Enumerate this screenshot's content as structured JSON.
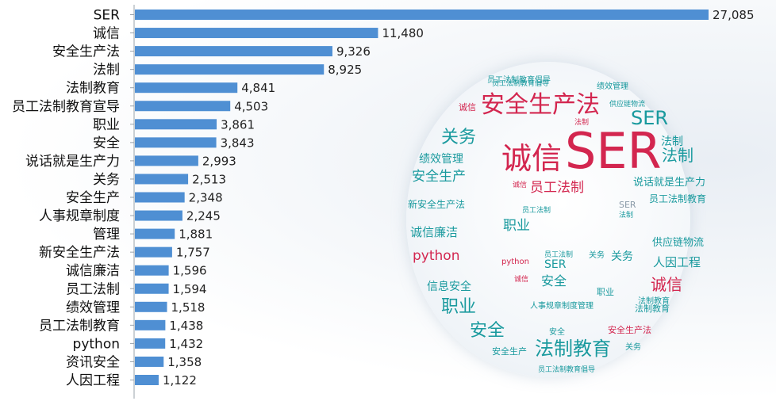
{
  "chart_data": {
    "type": "bar",
    "orientation": "horizontal",
    "categories": [
      "SER",
      "诚信",
      "安全生产法",
      "法制",
      "法制教育",
      "员工法制教育宣导",
      "职业",
      "安全",
      "说话就是生产力",
      "关务",
      "安全生产",
      "人事规章制度",
      "管理",
      "新安全生产法",
      "诚信廉洁",
      "员工法制",
      "绩效管理",
      "员工法制教育",
      "python",
      "资讯安全",
      "人因工程"
    ],
    "values": [
      27085,
      11480,
      9326,
      8925,
      4841,
      4503,
      3861,
      3843,
      2993,
      2513,
      2348,
      2245,
      1881,
      1757,
      1596,
      1594,
      1518,
      1438,
      1432,
      1358,
      1122
    ],
    "value_labels": [
      "27,085",
      "11,480",
      "9,326",
      "8,925",
      "4,841",
      "4,503",
      "3,861",
      "3,843",
      "2,993",
      "2,513",
      "2,348",
      "2,245",
      "1,881",
      "1,757",
      "1,596",
      "1,594",
      "1,518",
      "1,438",
      "1,432",
      "1,358",
      "1,122"
    ],
    "xlim": [
      0,
      27085
    ],
    "grid": false,
    "bar_color": "#4f8fd3"
  },
  "word_cloud": {
    "colors": {
      "red": "#d3264f",
      "teal": "#1a9a9e",
      "dark": "#1f5f7a",
      "gray": "#8a9aa8"
    },
    "words": [
      {
        "text": "SER",
        "color": "red"
      },
      {
        "text": "安全生产法",
        "color": "red"
      },
      {
        "text": "诚信",
        "color": "red"
      },
      {
        "text": "SER",
        "color": "teal"
      },
      {
        "text": "关务",
        "color": "teal"
      },
      {
        "text": "法制",
        "color": "teal"
      },
      {
        "text": "员工法制",
        "color": "red"
      },
      {
        "text": "绩效管理",
        "color": "teal"
      },
      {
        "text": "安全生产",
        "color": "teal"
      },
      {
        "text": "法制",
        "color": "teal"
      },
      {
        "text": "说话就是生产力",
        "color": "teal"
      },
      {
        "text": "员工法制教育",
        "color": "teal"
      },
      {
        "text": "新安全生产法",
        "color": "teal"
      },
      {
        "text": "职业",
        "color": "teal"
      },
      {
        "text": "诚信廉洁",
        "color": "teal"
      },
      {
        "text": "python",
        "color": "red"
      },
      {
        "text": "信息安全",
        "color": "teal"
      },
      {
        "text": "职业",
        "color": "teal"
      },
      {
        "text": "安全",
        "color": "teal"
      },
      {
        "text": "法制教育",
        "color": "teal"
      },
      {
        "text": "诚信",
        "color": "red"
      },
      {
        "text": "人因工程",
        "color": "teal"
      },
      {
        "text": "供应链物流",
        "color": "teal"
      },
      {
        "text": "关务",
        "color": "teal"
      },
      {
        "text": "安全",
        "color": "teal"
      },
      {
        "text": "SER",
        "color": "teal"
      },
      {
        "text": "员工法制教育倡导",
        "color": "teal"
      },
      {
        "text": "绩效管理",
        "color": "teal"
      },
      {
        "text": "法制教育",
        "color": "teal"
      },
      {
        "text": "人事规章制度管理",
        "color": "teal"
      },
      {
        "text": "安全生产法",
        "color": "red"
      },
      {
        "text": "安全生产",
        "color": "teal"
      },
      {
        "text": "员工法制教育倡导",
        "color": "teal"
      },
      {
        "text": "员工法制教育倡导",
        "color": "teal"
      },
      {
        "text": "员工法制",
        "color": "teal"
      },
      {
        "text": "诚信",
        "color": "red"
      },
      {
        "text": "关务",
        "color": "teal"
      },
      {
        "text": "python",
        "color": "red"
      },
      {
        "text": "安全",
        "color": "teal"
      },
      {
        "text": "职业",
        "color": "teal"
      },
      {
        "text": "SER",
        "color": "gray"
      },
      {
        "text": "法制",
        "color": "red"
      },
      {
        "text": "供应链物流",
        "color": "teal"
      },
      {
        "text": "诚信",
        "color": "red"
      },
      {
        "text": "诚信",
        "color": "red"
      },
      {
        "text": "法制教育",
        "color": "teal"
      },
      {
        "text": "员工法制",
        "color": "teal"
      },
      {
        "text": "法制",
        "color": "teal"
      },
      {
        "text": "关务",
        "color": "teal"
      }
    ]
  }
}
